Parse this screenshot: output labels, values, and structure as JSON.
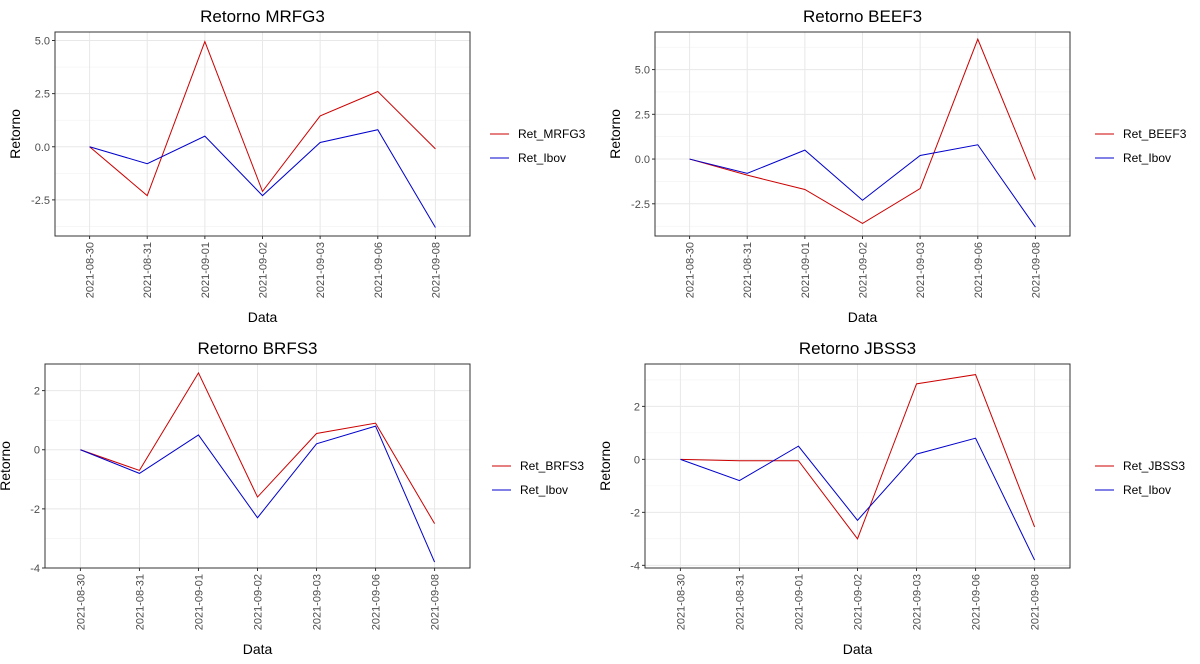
{
  "chart_data": [
    {
      "type": "line",
      "title": "Retorno MRFG3",
      "xlabel": "Data",
      "ylabel": "Retorno",
      "x": [
        "2021-08-30",
        "2021-08-31",
        "2021-09-01",
        "2021-09-02",
        "2021-09-03",
        "2021-09-06",
        "2021-09-08"
      ],
      "yticks": [
        -2.5,
        0.0,
        2.5,
        5.0
      ],
      "ytick_labels": [
        "-2.5",
        "0.0",
        "2.5",
        "5.0"
      ],
      "ylim": [
        -4.2,
        5.4
      ],
      "grid": true,
      "legend_position": "right",
      "series": [
        {
          "name": "Ret_MRFG3",
          "color": "#cc0000",
          "values": [
            0.0,
            -2.3,
            4.95,
            -2.1,
            1.45,
            2.6,
            -0.1
          ]
        },
        {
          "name": "Ret_Ibov",
          "color": "#0000cc",
          "values": [
            0.0,
            -0.8,
            0.5,
            -2.3,
            0.2,
            0.8,
            -3.8
          ]
        }
      ]
    },
    {
      "type": "line",
      "title": "Retorno BEEF3",
      "xlabel": "Data",
      "ylabel": "Retorno",
      "x": [
        "2021-08-30",
        "2021-08-31",
        "2021-09-01",
        "2021-09-02",
        "2021-09-03",
        "2021-09-06",
        "2021-09-08"
      ],
      "yticks": [
        -2.5,
        0.0,
        2.5,
        5.0
      ],
      "ytick_labels": [
        "-2.5",
        "0.0",
        "2.5",
        "5.0"
      ],
      "ylim": [
        -4.3,
        7.1
      ],
      "grid": true,
      "legend_position": "right",
      "series": [
        {
          "name": "Ret_BEEF3",
          "color": "#cc0000",
          "values": [
            0.0,
            -0.9,
            -1.7,
            -3.6,
            -1.65,
            6.7,
            -1.15
          ]
        },
        {
          "name": "Ret_Ibov",
          "color": "#0000cc",
          "values": [
            0.0,
            -0.8,
            0.5,
            -2.3,
            0.2,
            0.8,
            -3.8
          ]
        }
      ]
    },
    {
      "type": "line",
      "title": "Retorno BRFS3",
      "xlabel": "Data",
      "ylabel": "Retorno",
      "x": [
        "2021-08-30",
        "2021-08-31",
        "2021-09-01",
        "2021-09-02",
        "2021-09-03",
        "2021-09-06",
        "2021-09-08"
      ],
      "yticks": [
        -4,
        -2,
        0,
        2
      ],
      "ytick_labels": [
        "-4",
        "-2",
        "0",
        "2"
      ],
      "ylim": [
        -4.0,
        2.9
      ],
      "grid": true,
      "legend_position": "right",
      "series": [
        {
          "name": "Ret_BRFS3",
          "color": "#cc0000",
          "values": [
            0.0,
            -0.7,
            2.6,
            -1.6,
            0.55,
            0.9,
            -2.5
          ]
        },
        {
          "name": "Ret_Ibov",
          "color": "#0000cc",
          "values": [
            0.0,
            -0.8,
            0.5,
            -2.3,
            0.2,
            0.8,
            -3.8
          ]
        }
      ]
    },
    {
      "type": "line",
      "title": "Retorno JBSS3",
      "xlabel": "Data",
      "ylabel": "Retorno",
      "x": [
        "2021-08-30",
        "2021-08-31",
        "2021-09-01",
        "2021-09-02",
        "2021-09-03",
        "2021-09-06",
        "2021-09-08"
      ],
      "yticks": [
        -4,
        -2,
        0,
        2
      ],
      "ytick_labels": [
        "-4",
        "-2",
        "0",
        "2"
      ],
      "ylim": [
        -4.1,
        3.6
      ],
      "grid": true,
      "legend_position": "right",
      "series": [
        {
          "name": "Ret_JBSS3",
          "color": "#cc0000",
          "values": [
            0.0,
            -0.05,
            -0.05,
            -3.0,
            2.85,
            3.2,
            -2.55
          ]
        },
        {
          "name": "Ret_Ibov",
          "color": "#0000cc",
          "values": [
            0.0,
            -0.8,
            0.5,
            -2.3,
            0.2,
            0.8,
            -3.8
          ]
        }
      ]
    }
  ]
}
